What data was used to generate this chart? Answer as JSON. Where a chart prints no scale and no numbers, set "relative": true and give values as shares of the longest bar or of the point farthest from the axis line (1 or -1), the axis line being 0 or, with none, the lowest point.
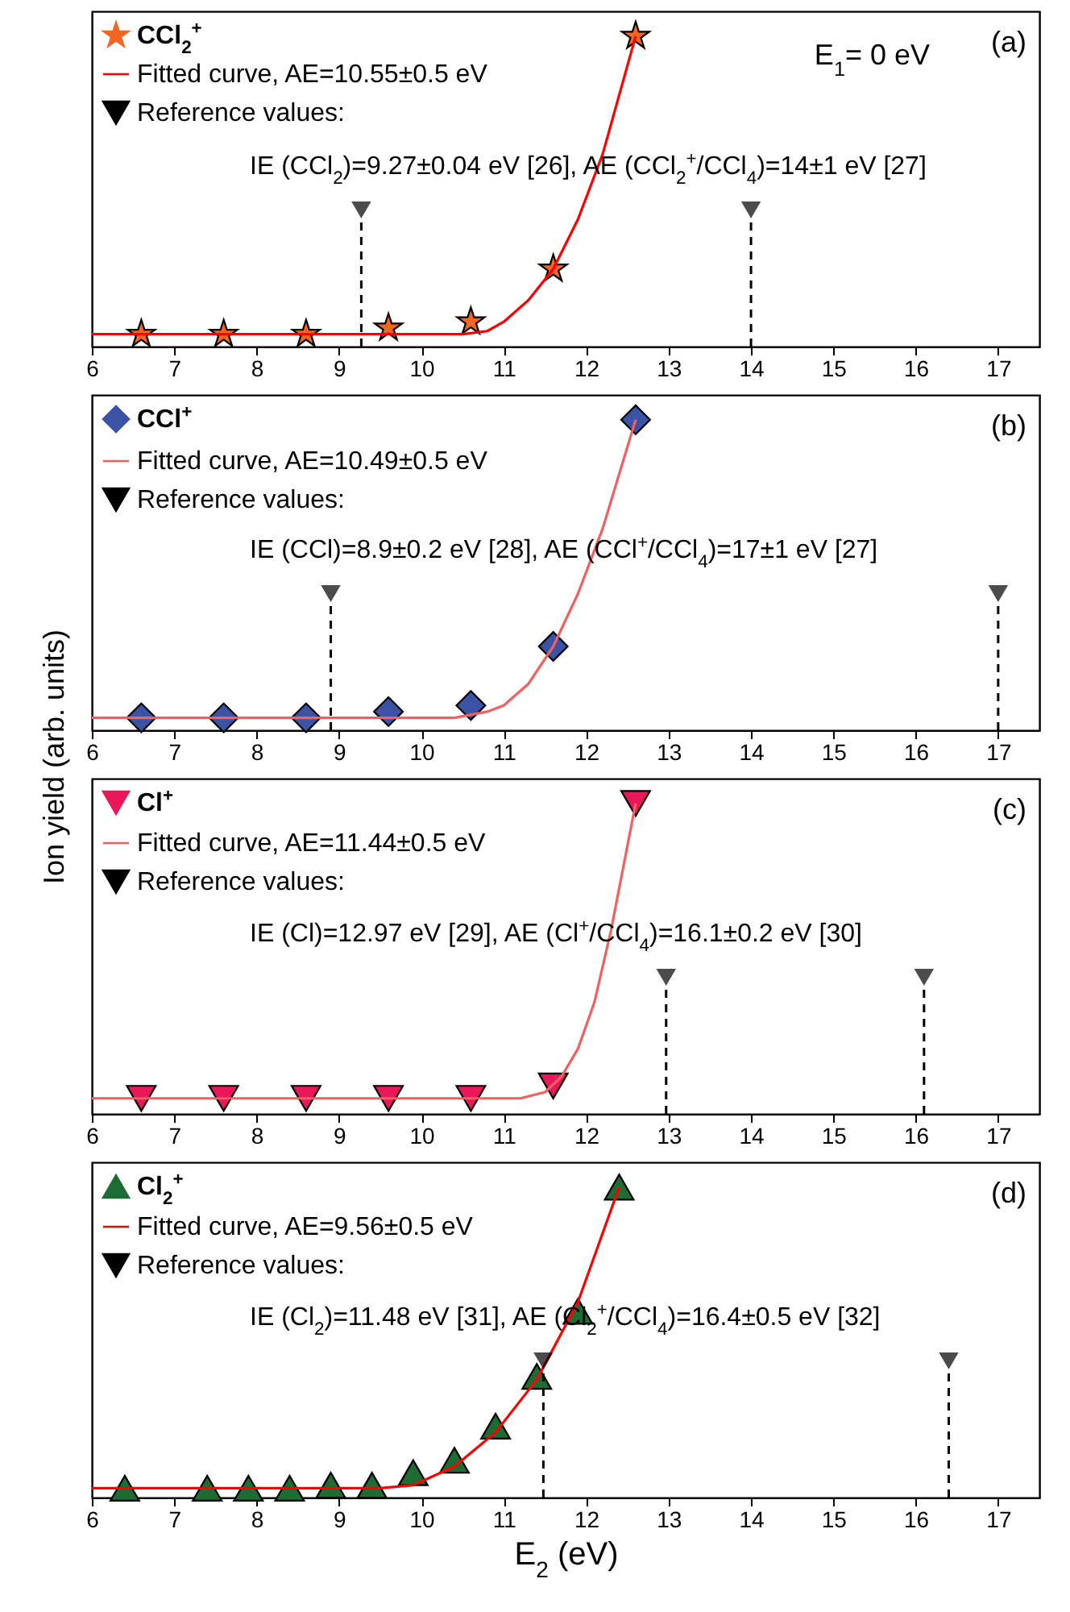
{
  "chart_data": [
    {
      "type": "scatter",
      "relative": true,
      "xlim": [
        6,
        17.5
      ],
      "xticks": [
        6,
        7,
        8,
        9,
        10,
        11,
        12,
        13,
        14,
        15,
        16,
        17
      ],
      "legend": "top left",
      "series": [
        {
          "name": "CCl$_{2}$$^{+}$",
          "type": "scatter",
          "marker": "star",
          "color": "#f26522",
          "x": [
            6.6,
            7.6,
            8.6,
            9.6,
            10.6,
            11.6,
            12.6
          ],
          "values": [
            0.04,
            0.04,
            0.04,
            0.06,
            0.08,
            0.25,
            1
          ]
        },
        {
          "name": "Fitted curve, AE=10.55±0.5 eV",
          "type": "line",
          "color": "#ff0000",
          "x": [
            6,
            10.5,
            10.8,
            11.0,
            11.3,
            11.6,
            11.9,
            12.2,
            12.6
          ],
          "values": [
            0.04,
            0.04,
            0.05,
            0.08,
            0.15,
            0.25,
            0.41,
            0.62,
            1
          ]
        }
      ],
      "ref_lines": [
        {
          "axis": "x",
          "value": 9.27,
          "label": "Reference values:",
          "color": "#000000",
          "line_style": "dashed"
        },
        {
          "axis": "x",
          "value": 14,
          "color": "#000000",
          "line_style": "dashed"
        }
      ],
      "annotations": [
        "IE (CCl$_{2}$)=9.27±0.04 eV [26], AE (CCl$_{2}$$^{+}$/CCl$_{4}$)=14±1 eV [27]",
        "E$_{1}$= 0 eV",
        "(a)"
      ]
    },
    {
      "type": "scatter",
      "relative": true,
      "xlim": [
        6,
        17.5
      ],
      "xticks": [
        6,
        7,
        8,
        9,
        10,
        11,
        12,
        13,
        14,
        15,
        16,
        17
      ],
      "legend": "top left",
      "ylabel": "Ion yield (arb. units)",
      "series": [
        {
          "name": "CCl$^{+}$",
          "type": "scatter",
          "marker": "diamond",
          "color": "#3a53a4",
          "x": [
            6.6,
            7.6,
            8.6,
            9.6,
            10.6,
            11.6,
            12.6
          ],
          "values": [
            0.04,
            0.04,
            0.04,
            0.06,
            0.08,
            0.27,
            1
          ]
        },
        {
          "name": "Fitted curve, AE=10.49±0.5 eV",
          "type": "line",
          "color": "#f06060",
          "x": [
            6,
            10.4,
            10.8,
            11.0,
            11.3,
            11.6,
            11.9,
            12.2,
            12.6
          ],
          "values": [
            0.04,
            0.04,
            0.06,
            0.08,
            0.15,
            0.27,
            0.44,
            0.65,
            1
          ]
        }
      ],
      "ref_lines": [
        {
          "axis": "x",
          "value": 8.9,
          "label": "Reference values:",
          "color": "#000000",
          "line_style": "dashed"
        },
        {
          "axis": "x",
          "value": 17,
          "color": "#000000",
          "line_style": "dashed"
        }
      ],
      "annotations": [
        "IE (CCl)=8.9±0.2 eV [28], AE (CCl$^{+}$/CCl$_{4}$)=17±1 eV [27]",
        "(b)"
      ]
    },
    {
      "type": "scatter",
      "relative": true,
      "xlim": [
        6,
        17.5
      ],
      "xticks": [
        6,
        7,
        8,
        9,
        10,
        11,
        12,
        13,
        14,
        15,
        16,
        17
      ],
      "legend": "top left",
      "series": [
        {
          "name": "Cl$^{+}$",
          "type": "scatter",
          "marker": "triangle-down",
          "color": "#e8185a",
          "x": [
            6.6,
            7.6,
            8.6,
            9.6,
            10.6,
            11.6,
            12.6
          ],
          "values": [
            0.05,
            0.05,
            0.05,
            0.05,
            0.05,
            0.09,
            1
          ]
        },
        {
          "name": "Fitted curve, AE=11.44±0.5 eV",
          "type": "line",
          "color": "#f06060",
          "x": [
            6,
            11.2,
            11.5,
            11.7,
            11.9,
            12.1,
            12.3,
            12.6
          ],
          "values": [
            0.05,
            0.05,
            0.07,
            0.12,
            0.21,
            0.36,
            0.59,
            1
          ]
        }
      ],
      "ref_lines": [
        {
          "axis": "x",
          "value": 12.97,
          "label": "Reference values:",
          "color": "#000000",
          "line_style": "dashed"
        },
        {
          "axis": "x",
          "value": 16.1,
          "color": "#000000",
          "line_style": "dashed"
        }
      ],
      "annotations": [
        "IE (Cl)=12.97 eV [29], AE (Cl$^{+}$/CCl$_{4}$)=16.1±0.2 eV [30]",
        "(c)"
      ]
    },
    {
      "type": "scatter",
      "relative": true,
      "xlim": [
        6,
        17.5
      ],
      "xticks": [
        6,
        7,
        8,
        9,
        10,
        11,
        12,
        13,
        14,
        15,
        16,
        17
      ],
      "legend": "top left",
      "xlabel": "E$_{2}$ (eV)",
      "series": [
        {
          "name": "Cl$_{2}$$^{+}$",
          "type": "scatter",
          "marker": "triangle",
          "color": "#1e6b34",
          "x": [
            6.4,
            7.4,
            7.9,
            8.4,
            8.9,
            9.4,
            9.9,
            10.4,
            10.9,
            11.4,
            11.9,
            12.4
          ],
          "values": [
            0.03,
            0.03,
            0.03,
            0.03,
            0.04,
            0.04,
            0.08,
            0.12,
            0.23,
            0.39,
            0.6,
            1
          ]
        },
        {
          "name": "Fitted curve, AE=9.56±0.5 eV",
          "type": "line",
          "color": "#ff0000",
          "x": [
            6,
            9.5,
            9.9,
            10.4,
            10.9,
            11.4,
            11.9,
            12.4
          ],
          "values": [
            0.03,
            0.03,
            0.04,
            0.1,
            0.21,
            0.38,
            0.63,
            1
          ]
        }
      ],
      "ref_lines": [
        {
          "axis": "x",
          "value": 11.48,
          "label": "Reference values:",
          "color": "#000000",
          "line_style": "dashed"
        },
        {
          "axis": "x",
          "value": 16.4,
          "color": "#000000",
          "line_style": "dashed"
        }
      ],
      "annotations": [
        "IE (Cl$_{2}$)=11.48 eV [31], AE (Cl$_{2}$$^{+}$/CCl$_{4}$)=16.4±0.5 eV [32]",
        "(d)"
      ]
    }
  ]
}
